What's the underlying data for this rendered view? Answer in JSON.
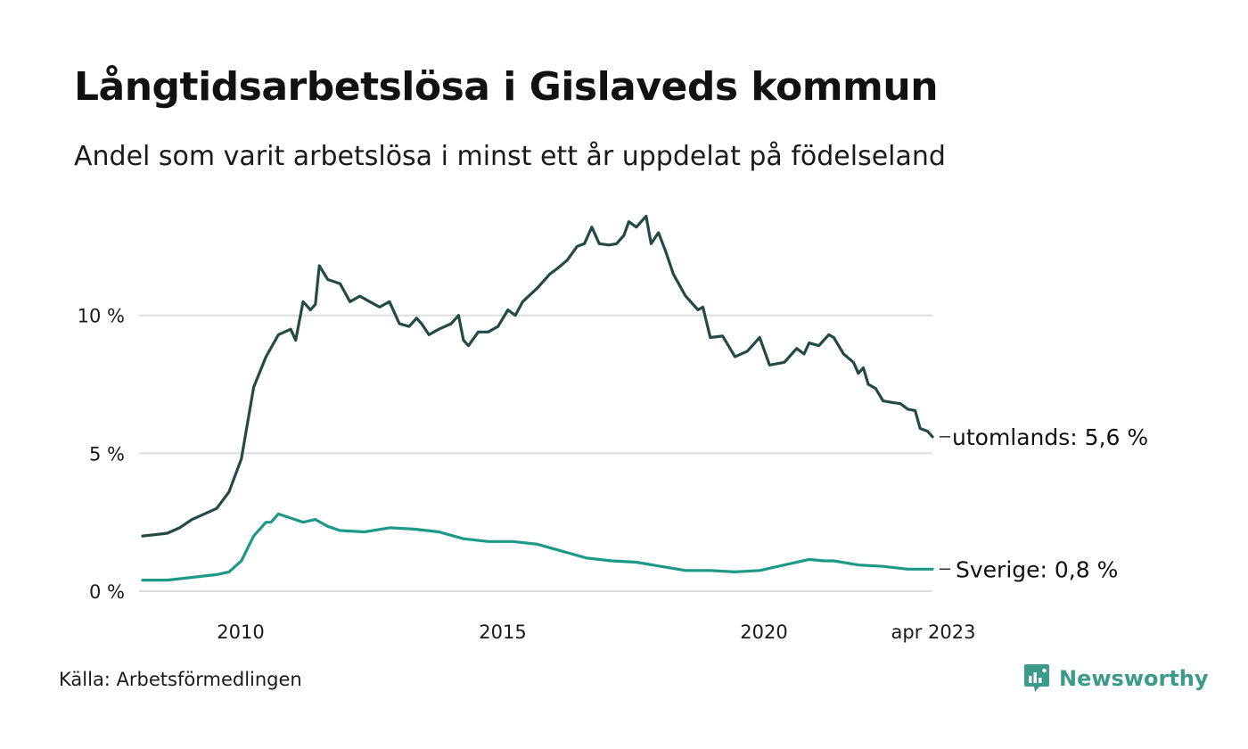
{
  "title": "Långtidsarbetslösa i Gislaveds kommun",
  "subtitle": "Andel som varit arbetslösa i minst ett år uppdelat på födelseland",
  "source": "Källa: Arbetsförmedlingen",
  "brand": {
    "name": "Newsworthy",
    "icon": "newsworthy-logo-icon",
    "color": "#3c9a8b"
  },
  "chart_data": {
    "type": "line",
    "title": "Långtidsarbetslösa i Gislaveds kommun",
    "subtitle": "Andel som varit arbetslösa i minst ett år uppdelat på födelseland",
    "xlim": [
      2008.0,
      2023.25
    ],
    "ylim": [
      0,
      14
    ],
    "y_ticks": [
      {
        "value": 0,
        "label": "0 %"
      },
      {
        "value": 5,
        "label": "5 %"
      },
      {
        "value": 10,
        "label": "10 %"
      }
    ],
    "x_ticks": [
      {
        "value": 2010,
        "label": "2010"
      },
      {
        "value": 2015,
        "label": "2015"
      },
      {
        "value": 2020,
        "label": "2020"
      },
      {
        "value": 2023.25,
        "label": "apr 2023"
      }
    ],
    "grid": "horizontal",
    "series": [
      {
        "name": "utomlands",
        "end_label": "utomlands: 5,6 %",
        "color": "#234a45",
        "points": [
          [
            2008.0,
            2.0
          ],
          [
            2008.25,
            2.05
          ],
          [
            2008.5,
            2.1
          ],
          [
            2008.75,
            2.3
          ],
          [
            2009.0,
            2.6
          ],
          [
            2009.25,
            2.8
          ],
          [
            2009.5,
            3.0
          ],
          [
            2009.75,
            3.6
          ],
          [
            2010.0,
            4.8
          ],
          [
            2010.25,
            7.4
          ],
          [
            2010.5,
            8.5
          ],
          [
            2010.75,
            9.3
          ],
          [
            2011.0,
            9.5
          ],
          [
            2011.1,
            9.1
          ],
          [
            2011.25,
            10.5
          ],
          [
            2011.4,
            10.2
          ],
          [
            2011.5,
            10.4
          ],
          [
            2011.58,
            11.8
          ],
          [
            2011.75,
            11.3
          ],
          [
            2012.0,
            11.15
          ],
          [
            2012.2,
            10.5
          ],
          [
            2012.4,
            10.7
          ],
          [
            2012.6,
            10.5
          ],
          [
            2012.8,
            10.3
          ],
          [
            2013.0,
            10.5
          ],
          [
            2013.2,
            9.7
          ],
          [
            2013.4,
            9.6
          ],
          [
            2013.55,
            9.9
          ],
          [
            2013.65,
            9.7
          ],
          [
            2013.8,
            9.3
          ],
          [
            2014.0,
            9.5
          ],
          [
            2014.25,
            9.7
          ],
          [
            2014.4,
            10.0
          ],
          [
            2014.5,
            9.1
          ],
          [
            2014.6,
            8.9
          ],
          [
            2014.8,
            9.4
          ],
          [
            2015.0,
            9.4
          ],
          [
            2015.2,
            9.6
          ],
          [
            2015.4,
            10.2
          ],
          [
            2015.55,
            10.0
          ],
          [
            2015.7,
            10.5
          ],
          [
            2016.0,
            11.0
          ],
          [
            2016.25,
            11.5
          ],
          [
            2016.4,
            11.7
          ],
          [
            2016.6,
            12.0
          ],
          [
            2016.8,
            12.5
          ],
          [
            2016.95,
            12.6
          ],
          [
            2017.1,
            13.2
          ],
          [
            2017.25,
            12.6
          ],
          [
            2017.45,
            12.55
          ],
          [
            2017.6,
            12.6
          ],
          [
            2017.75,
            12.9
          ],
          [
            2017.85,
            13.4
          ],
          [
            2018.0,
            13.2
          ],
          [
            2018.2,
            13.6
          ],
          [
            2018.3,
            12.6
          ],
          [
            2018.45,
            13.0
          ],
          [
            2018.6,
            12.3
          ],
          [
            2018.75,
            11.5
          ],
          [
            2019.0,
            10.7
          ],
          [
            2019.25,
            10.2
          ],
          [
            2019.35,
            10.3
          ],
          [
            2019.5,
            9.2
          ],
          [
            2019.75,
            9.25
          ],
          [
            2020.0,
            8.5
          ],
          [
            2020.25,
            8.7
          ],
          [
            2020.5,
            9.2
          ],
          [
            2020.7,
            8.2
          ],
          [
            2021.0,
            8.3
          ],
          [
            2021.25,
            8.8
          ],
          [
            2021.4,
            8.6
          ],
          [
            2021.5,
            9.0
          ],
          [
            2021.7,
            8.9
          ],
          [
            2021.9,
            9.3
          ],
          [
            2022.0,
            9.2
          ],
          [
            2022.2,
            8.6
          ],
          [
            2022.4,
            8.3
          ],
          [
            2022.5,
            7.9
          ],
          [
            2022.6,
            8.1
          ],
          [
            2022.7,
            7.5
          ],
          [
            2022.85,
            7.35
          ],
          [
            2023.0,
            6.9
          ],
          [
            2023.15,
            6.85
          ],
          [
            2023.35,
            6.8
          ],
          [
            2023.5,
            6.6
          ],
          [
            2023.65,
            6.55
          ],
          [
            2023.75,
            5.9
          ],
          [
            2023.9,
            5.8
          ],
          [
            2024.0,
            5.6
          ]
        ]
      },
      {
        "name": "Sverige",
        "end_label": "Sverige: 0,8 %",
        "color": "#1e9988",
        "points": [
          [
            2008.0,
            0.4
          ],
          [
            2008.5,
            0.4
          ],
          [
            2009.0,
            0.5
          ],
          [
            2009.5,
            0.6
          ],
          [
            2009.75,
            0.7
          ],
          [
            2010.0,
            1.1
          ],
          [
            2010.25,
            2.0
          ],
          [
            2010.5,
            2.5
          ],
          [
            2010.6,
            2.5
          ],
          [
            2010.75,
            2.8
          ],
          [
            2011.0,
            2.65
          ],
          [
            2011.25,
            2.5
          ],
          [
            2011.5,
            2.6
          ],
          [
            2011.75,
            2.35
          ],
          [
            2012.0,
            2.2
          ],
          [
            2012.5,
            2.15
          ],
          [
            2013.0,
            2.3
          ],
          [
            2013.5,
            2.25
          ],
          [
            2014.0,
            2.15
          ],
          [
            2014.5,
            1.9
          ],
          [
            2015.0,
            1.8
          ],
          [
            2015.5,
            1.8
          ],
          [
            2016.0,
            1.7
          ],
          [
            2016.5,
            1.45
          ],
          [
            2017.0,
            1.2
          ],
          [
            2017.5,
            1.1
          ],
          [
            2018.0,
            1.05
          ],
          [
            2018.5,
            0.9
          ],
          [
            2019.0,
            0.75
          ],
          [
            2019.5,
            0.75
          ],
          [
            2020.0,
            0.7
          ],
          [
            2020.5,
            0.75
          ],
          [
            2021.0,
            0.95
          ],
          [
            2021.5,
            1.15
          ],
          [
            2021.8,
            1.1
          ],
          [
            2022.0,
            1.1
          ],
          [
            2022.5,
            0.95
          ],
          [
            2023.0,
            0.9
          ],
          [
            2023.5,
            0.8
          ],
          [
            2023.75,
            0.8
          ],
          [
            2024.0,
            0.8
          ]
        ]
      }
    ]
  }
}
